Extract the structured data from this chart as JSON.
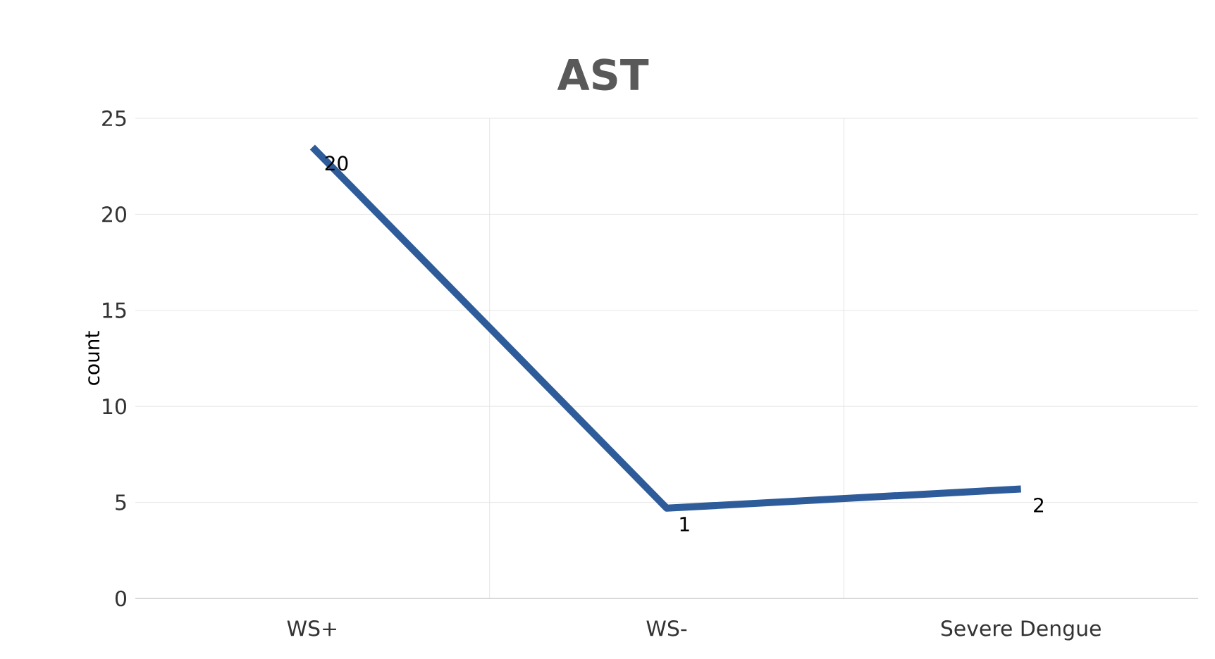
{
  "chart_data": {
    "type": "line",
    "title": "AST",
    "ylabel": "count",
    "categories": [
      "WS+",
      "WS-",
      "Severe Dengue"
    ],
    "values": [
      23.5,
      4.7,
      5.7
    ],
    "color": "#2e5c9a",
    "ylim": [
      0,
      25
    ],
    "yticks": [
      0,
      5,
      10,
      15,
      20,
      25
    ],
    "grid": true,
    "marker": "none",
    "line_style": "solid",
    "annotations": [
      {
        "text": "20",
        "x": "WS+",
        "y": 23.5
      },
      {
        "text": "1",
        "x": "WS-",
        "y": 4.7
      },
      {
        "text": "2",
        "x": "Severe Dengue",
        "y": 5.7
      }
    ]
  }
}
